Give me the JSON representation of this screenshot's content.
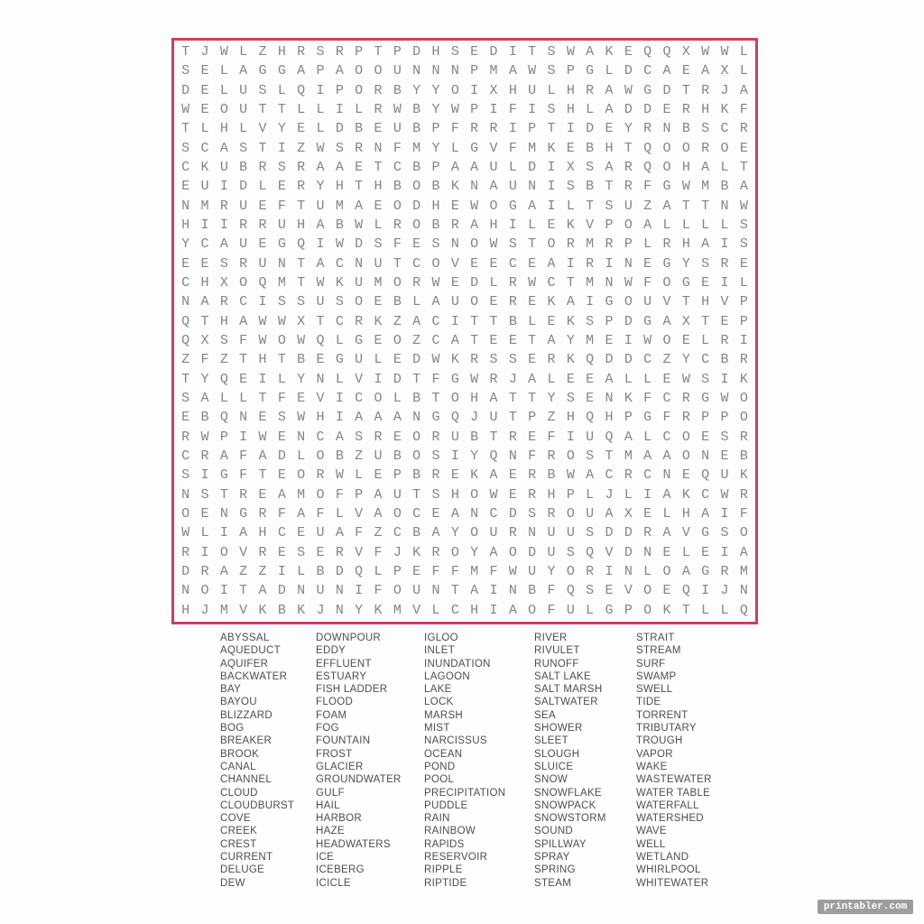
{
  "puzzle": {
    "rows": 30,
    "cols": 30,
    "border_color": "#cf3f5f",
    "letter_color": "#858585",
    "grid_rows": [
      "TJWLZHRSRPTPDHSEDITSWAKEQQXWWL",
      "SELAGGAPAOOUNNNPMAWSPGLDCAEAXL",
      "DELUSLQIPORBYYOIXHULHRAWGDTRJA",
      "WEOUTTLLILRWBYWPIFISHLADDERHKF",
      "TLHLVYELDBEUBPFRRIPTIDEYRNBSCR",
      "SCASTIZWSRNFMYLGVFMKEBHTQOOROE",
      "CKUBRSRAAETCBPAAULDIXSARQOHALT",
      "EUIDLERYHTHBOBKNAUNISBTRFGWMBA",
      "NMRUEFTUMAEODHEWOGAILTSUZATTNW",
      "HIIRRUHABWLROBRAHILEKVPOALLLLS",
      "YCAUEGQIWDSFESNOWSTORMRPLRHAIS",
      "EESRUNTACNUTCOVEECEAIRINEGYSRE",
      "CHXOQMTWKUMORWEDLRWCTMNWFOGEIL",
      "NARCISSUSOEBLAUOEREKAIGOUVTHVP",
      "QTHAWWXTCRKZACITTBLEKSPDGAXTEP",
      "QXSFWOWQLGEOZCATEETAYMEIWOELRI",
      "ZFZTHTBEGULEDWKRSSERKQDDCZYCBR",
      "TYQEILYNLVIDTFGWRJALEEALLEWSIK",
      "SALLTFEVICOLBTOHATTYSENKFCRGWO",
      "EBQNESWHIAAANGQJUTPZHQHPGFRPPO",
      "RWPIWENCASREORUBTREFIUQALCOESR",
      "CRAFADLOBZUBOSIYQNFROSTMAAONEB",
      "SIGFTEORWLEPBREKAERBWACRCNEQUK",
      "NSTREAMOFPAUTSHOWERHPLJLIAKCWR",
      "OENGRFAFLVAOCEANCDSROUAXELHAIF",
      "WLIAHCEUAFZCBAYOURNUUSDDRAVGSO",
      "RIOVRESERVFJKROYAODUSQVDNELEIA",
      "DRAZZILBDQLPEFFMFWUYORINLOAGRM",
      "NOITADNUNIFOUNTAINBFQSEVOEQIJN",
      "HJMVKBKJNYKMVLCHIAOFULGPOKTLLQ"
    ]
  },
  "word_list": {
    "columns": [
      [
        "ABYSSAL",
        "AQUEDUCT",
        "AQUIFER",
        "BACKWATER",
        "BAY",
        "BAYOU",
        "BLIZZARD",
        "BOG",
        "BREAKER",
        "BROOK",
        "CANAL",
        "CHANNEL",
        "CLOUD",
        "CLOUDBURST",
        "COVE",
        "CREEK",
        "CREST",
        "CURRENT",
        "DELUGE",
        "DEW"
      ],
      [
        "DOWNPOUR",
        "EDDY",
        "EFFLUENT",
        "ESTUARY",
        "FISH LADDER",
        "FLOOD",
        "FOAM",
        "FOG",
        "FOUNTAIN",
        "FROST",
        "GLACIER",
        "GROUNDWATER",
        "GULF",
        "HAIL",
        "HARBOR",
        "HAZE",
        "HEADWATERS",
        "ICE",
        "ICEBERG",
        "ICICLE"
      ],
      [
        "IGLOO",
        "INLET",
        "INUNDATION",
        "LAGOON",
        "LAKE",
        "LOCK",
        "MARSH",
        "MIST",
        "NARCISSUS",
        "OCEAN",
        "POND",
        "POOL",
        "PRECIPITATION",
        "PUDDLE",
        "RAIN",
        "RAINBOW",
        "RAPIDS",
        "RESERVOIR",
        "RIPPLE",
        "RIPTIDE"
      ],
      [
        "RIVER",
        "RIVULET",
        "RUNOFF",
        "SALT LAKE",
        "SALT MARSH",
        "SALTWATER",
        "SEA",
        "SHOWER",
        "SLEET",
        "SLOUGH",
        "SLUICE",
        "SNOW",
        "SNOWFLAKE",
        "SNOWPACK",
        "SNOWSTORM",
        "SOUND",
        "SPILLWAY",
        "SPRAY",
        "SPRING",
        "STEAM"
      ],
      [
        "STRAIT",
        "STREAM",
        "SURF",
        "SWAMP",
        "SWELL",
        "TIDE",
        "TORRENT",
        "TRIBUTARY",
        "TROUGH",
        "VAPOR",
        "WAKE",
        "WASTEWATER",
        "WATER TABLE",
        "WATERFALL",
        "WATERSHED",
        "WAVE",
        "WELL",
        "WETLAND",
        "WHIRLPOOL",
        "WHITEWATER"
      ]
    ]
  },
  "watermark": {
    "text": "printabler.com",
    "bg_color": "#9d9d9d",
    "text_color": "#ffffff"
  }
}
